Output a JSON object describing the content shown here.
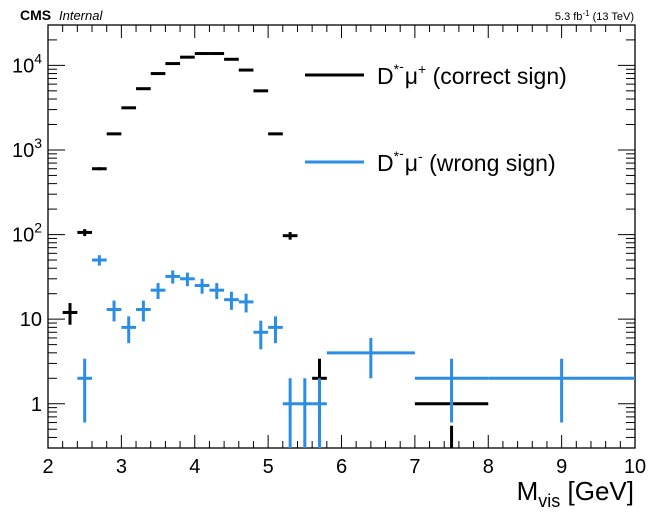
{
  "header": {
    "experiment": "CMS",
    "status": "Internal",
    "lumi_value": "5.3 fb",
    "lumi_exp": "-1",
    "energy": "(13 TeV)"
  },
  "chart_data": {
    "type": "scatter",
    "x_axis": {
      "title_main": "M",
      "title_sub": "vis",
      "title_unit": " [GeV]",
      "range": [
        2,
        10
      ],
      "ticks": [
        {
          "value": 2,
          "label": "2"
        },
        {
          "value": 3,
          "label": "3"
        },
        {
          "value": 4,
          "label": "4"
        },
        {
          "value": 5,
          "label": "5"
        },
        {
          "value": 6,
          "label": "6"
        },
        {
          "value": 7,
          "label": "7"
        },
        {
          "value": 8,
          "label": "8"
        },
        {
          "value": 9,
          "label": "9"
        },
        {
          "value": 10,
          "label": "10"
        }
      ]
    },
    "y_axis": {
      "scale": "log",
      "range": [
        0.3,
        30000
      ],
      "ticks": [
        {
          "value": 1,
          "label": "1"
        },
        {
          "value": 10,
          "label": "10"
        },
        {
          "value": 100,
          "label": "10",
          "exp": "2"
        },
        {
          "value": 1000,
          "label": "10",
          "exp": "3"
        },
        {
          "value": 10000,
          "label": "10",
          "exp": "4"
        }
      ]
    },
    "legend": {
      "placement": "top-right",
      "entries": [
        {
          "series": 0,
          "base": "D",
          "sup1": "*",
          "sup2": "-",
          "particle": "μ",
          "sup3": "+",
          "desc": " (correct sign)"
        },
        {
          "series": 1,
          "base": "D",
          "sup1": "*",
          "sup2": "-",
          "particle": "μ",
          "sup3": "-",
          "desc": " (wrong sign)"
        }
      ]
    },
    "series": [
      {
        "color": "#000000",
        "points": [
          {
            "x": 2.3,
            "xerr": 0.1,
            "y": 12,
            "ylo": 8.6,
            "yhi": 15.5
          },
          {
            "x": 2.5,
            "xerr": 0.1,
            "y": 106,
            "ylo": 96,
            "yhi": 116
          },
          {
            "x": 2.7,
            "xerr": 0.1,
            "y": 600,
            "ylo": 576,
            "yhi": 624
          },
          {
            "x": 2.9,
            "xerr": 0.1,
            "y": 1550,
            "ylo": 1511,
            "yhi": 1589
          },
          {
            "x": 3.1,
            "xerr": 0.1,
            "y": 3150,
            "ylo": 3094,
            "yhi": 3206
          },
          {
            "x": 3.3,
            "xerr": 0.1,
            "y": 5300,
            "ylo": 5227,
            "yhi": 5373
          },
          {
            "x": 3.5,
            "xerr": 0.1,
            "y": 8000,
            "ylo": 7911,
            "yhi": 8089
          },
          {
            "x": 3.7,
            "xerr": 0.1,
            "y": 10500,
            "ylo": 10398,
            "yhi": 10602
          },
          {
            "x": 3.9,
            "xerr": 0.1,
            "y": 12500,
            "ylo": 12388,
            "yhi": 12612
          },
          {
            "x": 4.1,
            "xerr": 0.1,
            "y": 13800,
            "ylo": 13683,
            "yhi": 13917
          },
          {
            "x": 4.3,
            "xerr": 0.1,
            "y": 13800,
            "ylo": 13683,
            "yhi": 13917
          },
          {
            "x": 4.5,
            "xerr": 0.1,
            "y": 11800,
            "ylo": 11691,
            "yhi": 11909
          },
          {
            "x": 4.7,
            "xerr": 0.1,
            "y": 8800,
            "ylo": 8706,
            "yhi": 8894
          },
          {
            "x": 4.9,
            "xerr": 0.1,
            "y": 5000,
            "ylo": 4929,
            "yhi": 5071
          },
          {
            "x": 5.1,
            "xerr": 0.1,
            "y": 1550,
            "ylo": 1511,
            "yhi": 1589
          },
          {
            "x": 5.3,
            "xerr": 0.1,
            "y": 97,
            "ylo": 87,
            "yhi": 107
          },
          {
            "x": 5.7,
            "xerr": 0.1,
            "y": 2,
            "ylo": 0.6,
            "yhi": 3.4
          },
          {
            "x": 7.5,
            "xerr": 0.5,
            "y": 1,
            "ylo": 0.3,
            "yhi": 0.55
          }
        ]
      },
      {
        "color": "#2b8de4",
        "points": [
          {
            "x": 2.5,
            "xerr": 0.1,
            "y": 2,
            "ylo": 0.6,
            "yhi": 3.4
          },
          {
            "x": 2.7,
            "xerr": 0.1,
            "y": 50,
            "ylo": 43,
            "yhi": 57
          },
          {
            "x": 2.9,
            "xerr": 0.1,
            "y": 13,
            "ylo": 9.4,
            "yhi": 16.6
          },
          {
            "x": 3.1,
            "xerr": 0.1,
            "y": 8,
            "ylo": 5.2,
            "yhi": 10.8
          },
          {
            "x": 3.3,
            "xerr": 0.1,
            "y": 13,
            "ylo": 9.4,
            "yhi": 16.6
          },
          {
            "x": 3.5,
            "xerr": 0.1,
            "y": 22,
            "ylo": 17.3,
            "yhi": 26.7
          },
          {
            "x": 3.7,
            "xerr": 0.1,
            "y": 32,
            "ylo": 26.3,
            "yhi": 37.7
          },
          {
            "x": 3.9,
            "xerr": 0.1,
            "y": 30,
            "ylo": 24.5,
            "yhi": 35.5
          },
          {
            "x": 4.1,
            "xerr": 0.1,
            "y": 25,
            "ylo": 20,
            "yhi": 30
          },
          {
            "x": 4.3,
            "xerr": 0.1,
            "y": 22,
            "ylo": 17.3,
            "yhi": 26.7
          },
          {
            "x": 4.5,
            "xerr": 0.1,
            "y": 17,
            "ylo": 12.9,
            "yhi": 21.1
          },
          {
            "x": 4.7,
            "xerr": 0.1,
            "y": 16,
            "ylo": 12,
            "yhi": 20
          },
          {
            "x": 4.9,
            "xerr": 0.1,
            "y": 7,
            "ylo": 4.4,
            "yhi": 9.6
          },
          {
            "x": 5.1,
            "xerr": 0.1,
            "y": 8,
            "ylo": 5.2,
            "yhi": 10.8
          },
          {
            "x": 5.3,
            "xerr": 0.1,
            "y": 1,
            "ylo": 0.3,
            "yhi": 2
          },
          {
            "x": 5.5,
            "xerr": 0.1,
            "y": 1,
            "ylo": 0.3,
            "yhi": 2
          },
          {
            "x": 5.7,
            "xerr": 0.1,
            "y": 1,
            "ylo": 0.3,
            "yhi": 2
          },
          {
            "x": 6.4,
            "xerr": 0.6,
            "y": 4,
            "ylo": 2,
            "yhi": 6
          },
          {
            "x": 7.5,
            "xerr": 0.5,
            "y": 2,
            "ylo": 0.6,
            "yhi": 3.4
          },
          {
            "x": 9,
            "xerr": 1,
            "y": 2,
            "ylo": 0.6,
            "yhi": 3.4
          }
        ]
      }
    ]
  }
}
